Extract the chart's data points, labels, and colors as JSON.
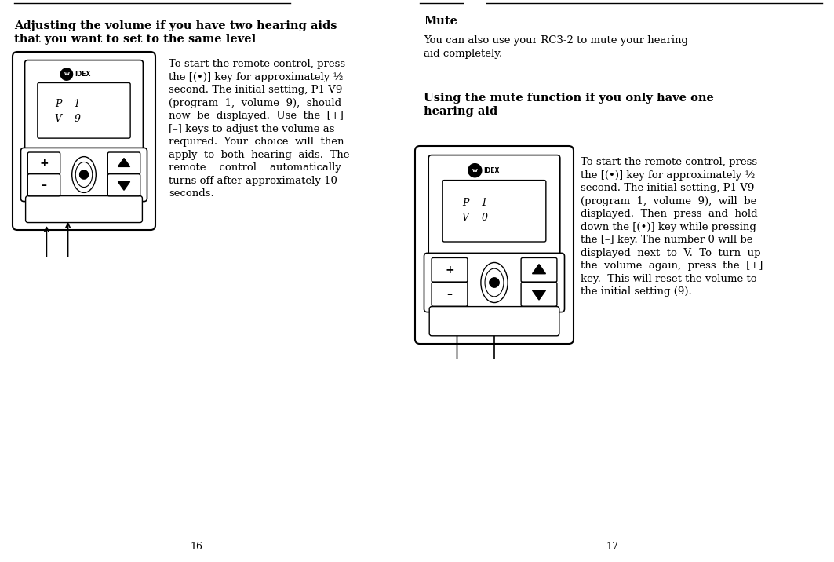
{
  "bg_color": "#ffffff",
  "page_width": 10.63,
  "page_height": 7.16,
  "page_num_left": "16",
  "page_num_right": "17",
  "left_title_line1": "Adjusting the volume if you have two hearing aids",
  "left_title_line2": "that you want to set to the same level",
  "left_body_lines": [
    "To start the remote control, press",
    "the [(•)] key for approximately ½",
    "second. The initial setting, P1 V9",
    "(program  1,  volume  9),  should",
    "now  be  displayed.  Use  the  [+]",
    "[–] keys to adjust the volume as",
    "required.  Your  choice  will  then",
    "apply  to  both  hearing  aids.  The",
    "remote    control    automatically",
    "turns off after approximately 10",
    "seconds."
  ],
  "right_title1": "Mute",
  "right_body1_lines": [
    "You can also use your RC3-2 to mute your hearing",
    "aid completely."
  ],
  "right_title2_line1": "Using the mute function if you only have one",
  "right_title2_line2": "hearing aid",
  "right_body2_lines": [
    "To start the remote control, press",
    "the [(•)] key for approximately ½",
    "second. The initial setting, P1 V9",
    "(program  1,  volume  9),  will  be",
    "displayed.  Then  press  and  hold",
    "down the [(•)] key while pressing",
    "the [–] key. The number 0 will be",
    "displayed  next  to  V.  To  turn  up",
    "the  volume  again,  press  the  [+]",
    "key.  This will reset the volume to",
    "the initial setting (9)."
  ],
  "device1_display": "P    1\nV    9",
  "device2_display": "P    1\nV    0",
  "widex_text": "IDEX"
}
